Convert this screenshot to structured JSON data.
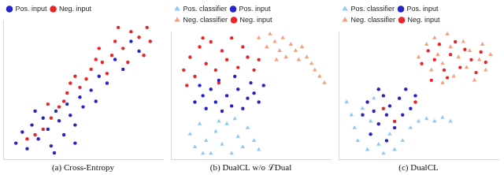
{
  "chart_data": [
    {
      "type": "scatter",
      "title": "(a) Cross-Entropy",
      "xlim": [
        0,
        100
      ],
      "ylim": [
        0,
        100
      ],
      "grid": false,
      "tick_labels": false,
      "legend": "top-left",
      "series": [
        {
          "name": "Pos. input",
          "color": "#2323c8",
          "marker": "circle",
          "x": [
            8,
            12,
            15,
            18,
            22,
            25,
            28,
            30,
            33,
            35,
            38,
            40,
            42,
            45,
            48,
            50,
            55,
            58,
            60,
            65,
            70,
            75,
            80,
            85,
            20,
            32,
            45
          ],
          "values": [
            12,
            20,
            8,
            25,
            15,
            30,
            22,
            10,
            35,
            28,
            18,
            40,
            32,
            25,
            45,
            38,
            50,
            42,
            60,
            55,
            72,
            65,
            85,
            78,
            35,
            5,
            12
          ]
        },
        {
          "name": "Neg. input",
          "color": "#e8262a",
          "marker": "circle",
          "x": [
            90,
            85,
            80,
            75,
            70,
            68,
            62,
            60,
            55,
            52,
            48,
            45,
            40,
            38,
            35,
            30,
            25,
            20,
            15,
            88,
            92,
            78,
            65,
            42,
            58,
            72,
            28
          ],
          "values": [
            95,
            88,
            92,
            80,
            85,
            75,
            70,
            80,
            65,
            58,
            52,
            60,
            48,
            42,
            38,
            30,
            22,
            18,
            15,
            75,
            85,
            70,
            62,
            55,
            72,
            95,
            40
          ]
        }
      ]
    },
    {
      "type": "scatter",
      "title": "(b) DualCL w/o ℒDual",
      "xlim": [
        0,
        100
      ],
      "ylim": [
        0,
        100
      ],
      "grid": false,
      "tick_labels": false,
      "legend": "top-left",
      "series": [
        {
          "name": "Pos. classifier",
          "color": "#8ecbf5",
          "marker": "triangle",
          "x": [
            12,
            15,
            18,
            22,
            25,
            28,
            32,
            35,
            38,
            42,
            45,
            48,
            52,
            55,
            20,
            30,
            40
          ],
          "values": [
            20,
            10,
            28,
            15,
            5,
            22,
            12,
            28,
            5,
            18,
            10,
            25,
            15,
            8,
            5,
            30,
            32
          ]
        },
        {
          "name": "Pos. input",
          "color": "#2323c8",
          "marker": "circle",
          "x": [
            15,
            20,
            22,
            25,
            28,
            32,
            35,
            38,
            42,
            45,
            48,
            52,
            55,
            30,
            40,
            50,
            18,
            58
          ],
          "values": [
            45,
            50,
            40,
            55,
            45,
            38,
            50,
            42,
            55,
            40,
            48,
            52,
            45,
            62,
            65,
            60,
            58,
            58
          ]
        },
        {
          "name": "Neg. classifier",
          "color": "#f7a07e",
          "marker": "triangle",
          "x": [
            55,
            60,
            62,
            65,
            68,
            70,
            72,
            75,
            78,
            80,
            82,
            85,
            88,
            90,
            93,
            96,
            66
          ],
          "values": [
            95,
            88,
            98,
            92,
            85,
            95,
            80,
            90,
            85,
            78,
            88,
            80,
            75,
            70,
            65,
            60,
            78
          ]
        },
        {
          "name": "Neg. input",
          "color": "#e8262a",
          "marker": "circle",
          "x": [
            8,
            12,
            15,
            18,
            22,
            25,
            28,
            32,
            35,
            38,
            42,
            45,
            48,
            52,
            20,
            30,
            55,
            10
          ],
          "values": [
            70,
            80,
            65,
            88,
            75,
            92,
            70,
            85,
            78,
            95,
            72,
            88,
            80,
            70,
            95,
            60,
            78,
            58
          ]
        }
      ]
    },
    {
      "type": "scatter",
      "title": "(c) DualCL",
      "xlim": [
        0,
        100
      ],
      "ylim": [
        0,
        100
      ],
      "grid": false,
      "tick_labels": false,
      "legend": "top-left",
      "series": [
        {
          "name": "Pos. classifier",
          "color": "#8ecbf5",
          "marker": "triangle",
          "x": [
            5,
            8,
            10,
            12,
            15,
            18,
            20,
            25,
            28,
            32,
            35,
            40,
            45,
            50,
            55,
            60,
            65,
            70,
            22
          ],
          "values": [
            45,
            35,
            25,
            15,
            40,
            8,
            30,
            12,
            5,
            20,
            8,
            15,
            25,
            30,
            32,
            30,
            33,
            30,
            48
          ]
        },
        {
          "name": "Pos. input",
          "color": "#2323c8",
          "marker": "circle",
          "x": [
            15,
            18,
            20,
            22,
            25,
            28,
            30,
            32,
            35,
            38,
            40,
            42,
            45,
            48,
            30,
            25
          ],
          "values": [
            35,
            45,
            20,
            38,
            28,
            50,
            35,
            42,
            25,
            48,
            35,
            55,
            40,
            50,
            15,
            55
          ]
        },
        {
          "name": "Neg. classifier",
          "color": "#f7a07e",
          "marker": "triangle",
          "x": [
            50,
            55,
            58,
            60,
            62,
            65,
            68,
            70,
            72,
            75,
            78,
            80,
            82,
            85,
            88,
            90,
            92,
            95,
            65
          ],
          "values": [
            80,
            90,
            70,
            95,
            82,
            75,
            98,
            88,
            65,
            80,
            92,
            72,
            85,
            62,
            78,
            90,
            70,
            82,
            60
          ]
        },
        {
          "name": "Neg. input",
          "color": "#e8262a",
          "marker": "circle",
          "x": [
            52,
            56,
            60,
            63,
            66,
            70,
            73,
            76,
            79,
            83,
            86,
            89,
            92,
            68,
            58,
            35,
            28,
            48
          ],
          "values": [
            75,
            85,
            78,
            90,
            70,
            82,
            92,
            72,
            86,
            78,
            68,
            84,
            76,
            64,
            62,
            30,
            40,
            45
          ]
        }
      ]
    }
  ]
}
